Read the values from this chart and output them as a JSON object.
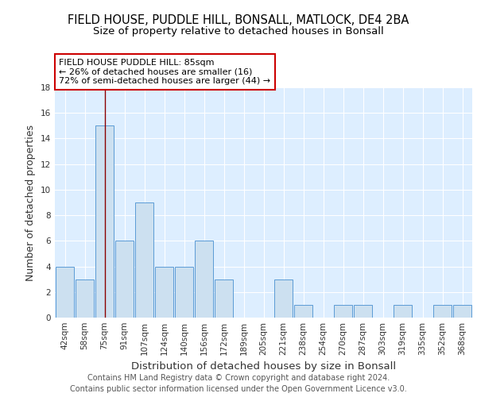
{
  "title1": "FIELD HOUSE, PUDDLE HILL, BONSALL, MATLOCK, DE4 2BA",
  "title2": "Size of property relative to detached houses in Bonsall",
  "xlabel": "Distribution of detached houses by size in Bonsall",
  "ylabel": "Number of detached properties",
  "categories": [
    "42sqm",
    "58sqm",
    "75sqm",
    "91sqm",
    "107sqm",
    "124sqm",
    "140sqm",
    "156sqm",
    "172sqm",
    "189sqm",
    "205sqm",
    "221sqm",
    "238sqm",
    "254sqm",
    "270sqm",
    "287sqm",
    "303sqm",
    "319sqm",
    "335sqm",
    "352sqm",
    "368sqm"
  ],
  "values": [
    4,
    3,
    15,
    6,
    9,
    4,
    4,
    6,
    3,
    0,
    0,
    3,
    1,
    0,
    1,
    1,
    0,
    1,
    0,
    1,
    1
  ],
  "bar_color": "#cce0f0",
  "bar_edgecolor": "#5b9bd5",
  "red_line_index": 2,
  "annotation_text": "FIELD HOUSE PUDDLE HILL: 85sqm\n← 26% of detached houses are smaller (16)\n72% of semi-detached houses are larger (44) →",
  "annotation_box_color": "white",
  "annotation_box_edgecolor": "#cc0000",
  "ylim": [
    0,
    18
  ],
  "yticks": [
    0,
    2,
    4,
    6,
    8,
    10,
    12,
    14,
    16,
    18
  ],
  "footer1": "Contains HM Land Registry data © Crown copyright and database right 2024.",
  "footer2": "Contains public sector information licensed under the Open Government Licence v3.0.",
  "bg_color": "#ddeeff",
  "grid_color": "white",
  "title_fontsize": 10.5,
  "subtitle_fontsize": 9.5,
  "ylabel_fontsize": 9,
  "xlabel_fontsize": 9.5,
  "tick_fontsize": 7.5,
  "annotation_fontsize": 8,
  "footer_fontsize": 7
}
